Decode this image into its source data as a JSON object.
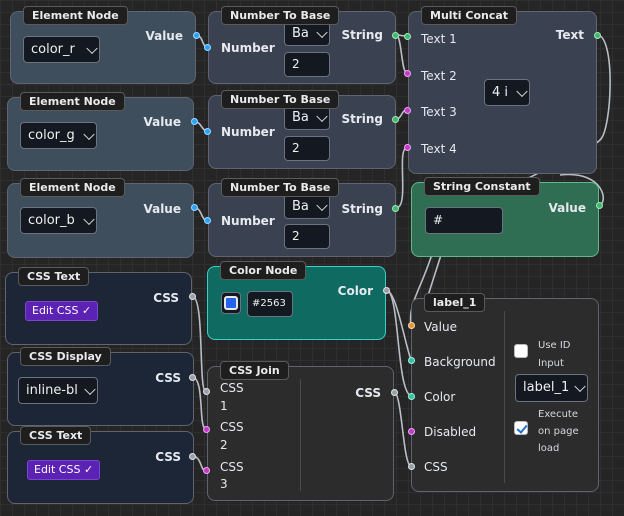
{
  "colors": {
    "accent_purple": "#5b22b3",
    "teal_node": "#0f6b62",
    "green_node": "#2f6e52",
    "color_swatch": "#2563eb"
  },
  "nodes": {
    "element_r": {
      "title": "Element Node",
      "value_label": "Value",
      "select": "color_r"
    },
    "element_g": {
      "title": "Element Node",
      "value_label": "Value",
      "select": "color_g"
    },
    "element_b": {
      "title": "Element Node",
      "value_label": "Value",
      "select": "color_b"
    },
    "ntb1": {
      "title": "Number To Base",
      "input_label": "Number",
      "output_label": "String",
      "base_select": "Ba",
      "base_value": "2"
    },
    "ntb2": {
      "title": "Number To Base",
      "input_label": "Number",
      "output_label": "String",
      "base_select": "Ba",
      "base_value": "2"
    },
    "ntb3": {
      "title": "Number To Base",
      "input_label": "Number",
      "output_label": "String",
      "base_select": "Ba",
      "base_value": "2"
    },
    "multi_concat": {
      "title": "Multi Concat",
      "inputs": [
        "Text 1",
        "Text 2",
        "Text 3",
        "Text 4"
      ],
      "output_label": "Text",
      "count_select": "4 i"
    },
    "string_constant": {
      "title": "String Constant",
      "value": "#",
      "output_label": "Value"
    },
    "css_text1": {
      "title": "CSS Text",
      "button": "Edit CSS ✓",
      "output_label": "CSS"
    },
    "css_display": {
      "title": "CSS Display",
      "select": "inline-bl",
      "output_label": "CSS"
    },
    "css_text2": {
      "title": "CSS Text",
      "button": "Edit CSS ✓",
      "output_label": "CSS"
    },
    "color_node": {
      "title": "Color Node",
      "hex": "#2563",
      "output_label": "Color"
    },
    "css_join": {
      "title": "CSS Join",
      "inputs": [
        {
          "a": "CSS",
          "b": "1"
        },
        {
          "a": "CSS",
          "b": "2"
        },
        {
          "a": "CSS",
          "b": "3"
        }
      ],
      "output_label": "CSS"
    },
    "label_1": {
      "title": "label_1",
      "inputs": [
        "Value",
        "Background",
        "Color",
        "Disabled",
        "CSS"
      ],
      "use_id_label_1": "Use ID",
      "use_id_label_2": "Input",
      "select": "label_1",
      "execute_1": "Execute",
      "execute_2": "on page",
      "execute_3": "load"
    }
  }
}
